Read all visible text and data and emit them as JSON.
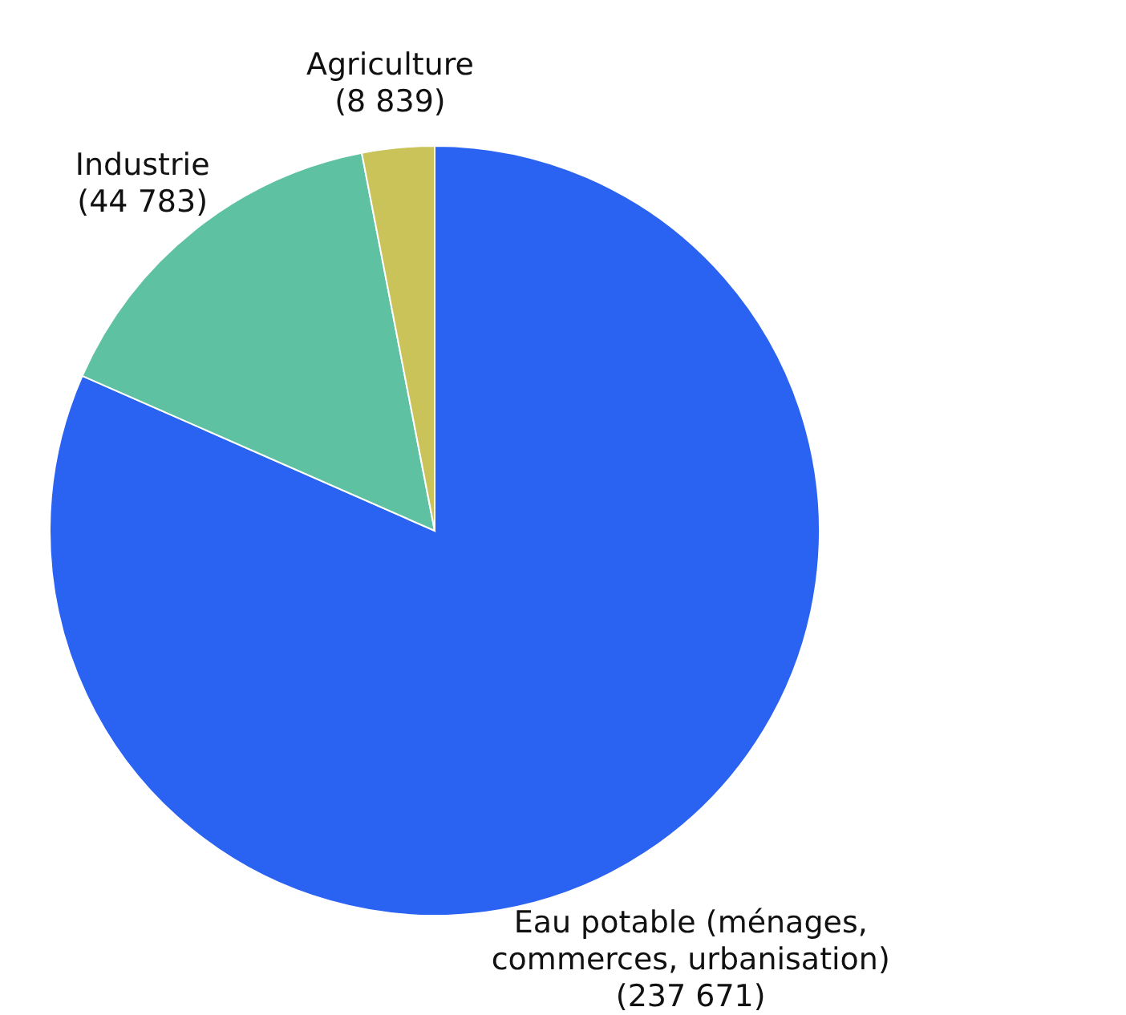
{
  "chart_data": {
    "type": "pie",
    "categories": [
      "Eau potable (ménages, commerces, urbanisation)",
      "Industrie",
      "Agriculture"
    ],
    "values": [
      237671,
      44783,
      8839
    ],
    "value_labels": [
      "(237 671)",
      "(44 783)",
      "(8 839)"
    ],
    "colors": [
      "#2a62f2",
      "#5ec2a2",
      "#c9c35a"
    ]
  }
}
